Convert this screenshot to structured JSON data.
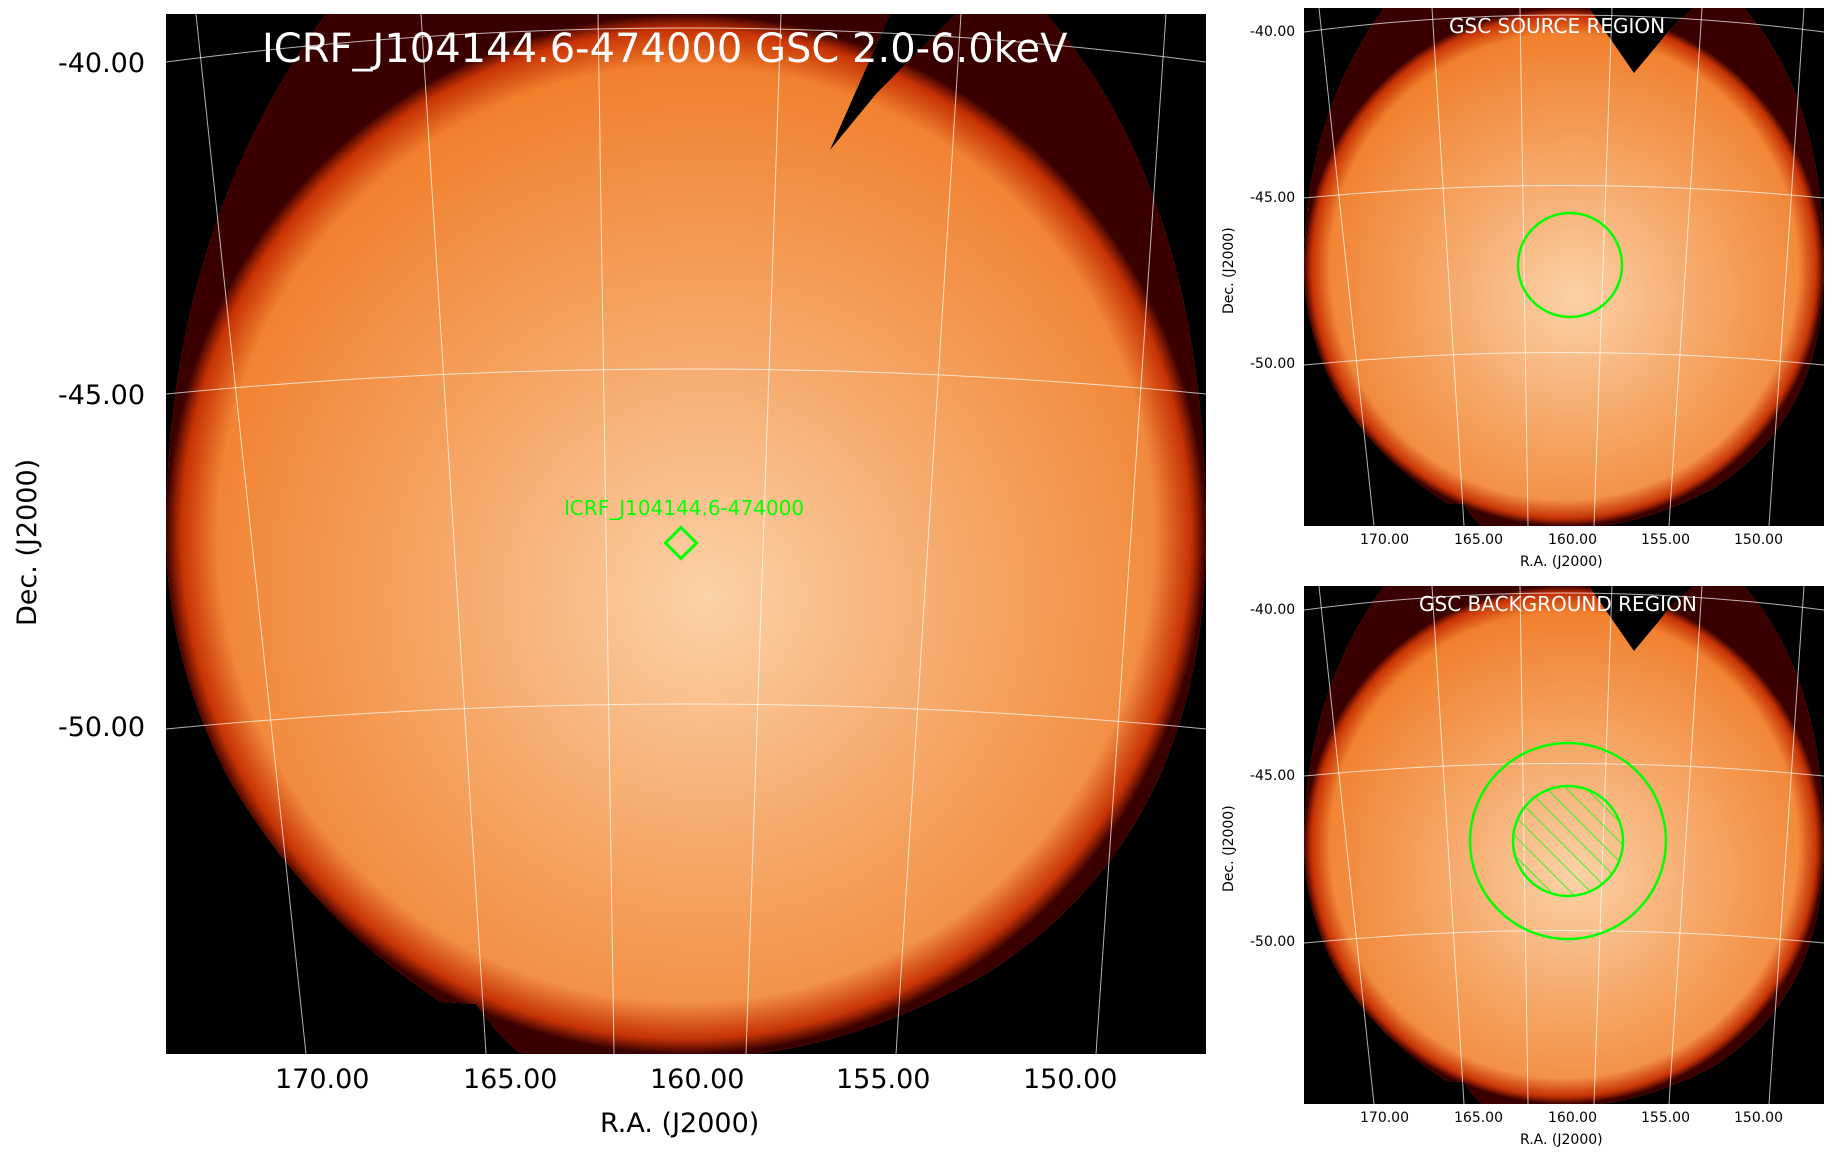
{
  "main": {
    "title": "ICRF_J104144.6-474000 GSC 2.0-6.0keV",
    "source_label": "ICRF_J104144.6-474000",
    "dec_ticks": [
      "-40.00",
      "-45.00",
      "-50.00"
    ],
    "ra_ticks": [
      "170.00",
      "165.00",
      "160.00",
      "155.00",
      "150.00"
    ],
    "xlabel": "R.A. (J2000)",
    "ylabel": "Dec. (J2000)"
  },
  "source_panel": {
    "title": "GSC SOURCE REGION",
    "dec_ticks": [
      "-40.00",
      "-45.00",
      "-50.00"
    ],
    "ra_ticks": [
      "170.00",
      "165.00",
      "160.00",
      "155.00",
      "150.00"
    ],
    "xlabel": "R.A. (J2000)",
    "ylabel": "Dec. (J2000)"
  },
  "background_panel": {
    "title": "GSC BACKGROUND REGION",
    "dec_ticks": [
      "-40.00",
      "-45.00",
      "-50.00"
    ],
    "ra_ticks": [
      "170.00",
      "165.00",
      "160.00",
      "155.00",
      "150.00"
    ],
    "xlabel": "R.A. (J2000)",
    "ylabel": "Dec. (J2000)"
  },
  "colors": {
    "frame": "#000000",
    "disk_edge": "#c22a00",
    "disk_body": "#f07a24",
    "disk_bright": "#fbd2a8",
    "region": "#00ff00",
    "grid": "#ffffff"
  }
}
